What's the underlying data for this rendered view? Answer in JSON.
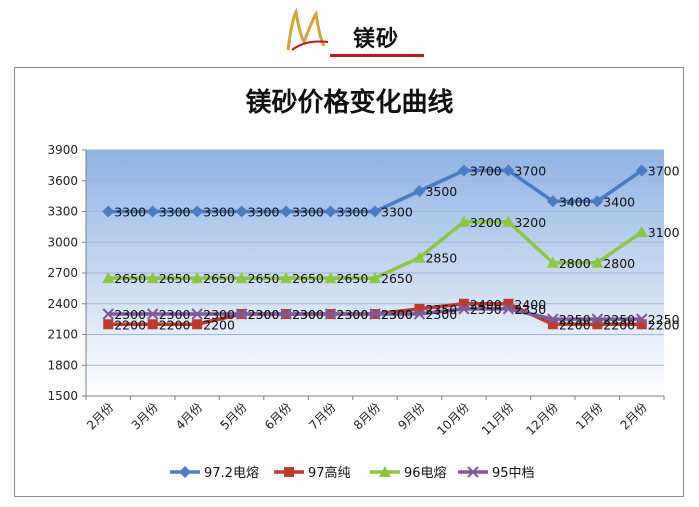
{
  "header": {
    "brand": "镁砂"
  },
  "colors": {
    "series_1": "#4a7cc1",
    "series_2": "#c0392b",
    "series_3": "#8dc63f",
    "series_4": "#7e5a9b",
    "logo_gold": "#d9a23a",
    "logo_red": "#c0161c"
  },
  "icons": {
    "logo": "stylized-m-swoosh-logo"
  },
  "chart_data": {
    "type": "line",
    "title": "镁砂价格变化曲线",
    "xlabel": "",
    "ylabel": "",
    "ylim": [
      1500,
      3900
    ],
    "yticks": [
      "1500",
      "1800",
      "2100",
      "2400",
      "2700",
      "3000",
      "3300",
      "3600",
      "3900"
    ],
    "grid": true,
    "legend_position": "bottom",
    "categories": [
      "2月份",
      "3月份",
      "4月份",
      "5月份",
      "6月份",
      "7月份",
      "8月份",
      "9月份",
      "10月份",
      "11月份",
      "12月份",
      "1月份",
      "2月份"
    ],
    "series": [
      {
        "name": "97.2电熔",
        "marker": "diamond",
        "values": [
          3300,
          3300,
          3300,
          3300,
          3300,
          3300,
          3300,
          3500,
          3700,
          3700,
          3400,
          3400,
          3700
        ]
      },
      {
        "name": "97高纯",
        "marker": "square",
        "values": [
          2200,
          2200,
          2200,
          2300,
          2300,
          2300,
          2300,
          2350,
          2400,
          2400,
          2200,
          2200,
          2200
        ]
      },
      {
        "name": "96电熔",
        "marker": "triangle",
        "values": [
          2650,
          2650,
          2650,
          2650,
          2650,
          2650,
          2650,
          2850,
          3200,
          3200,
          2800,
          2800,
          3100
        ]
      },
      {
        "name": "95中档",
        "marker": "x",
        "values": [
          2300,
          2300,
          2300,
          2300,
          2300,
          2300,
          2300,
          2300,
          2350,
          2350,
          2250,
          2250,
          2250
        ]
      }
    ]
  }
}
